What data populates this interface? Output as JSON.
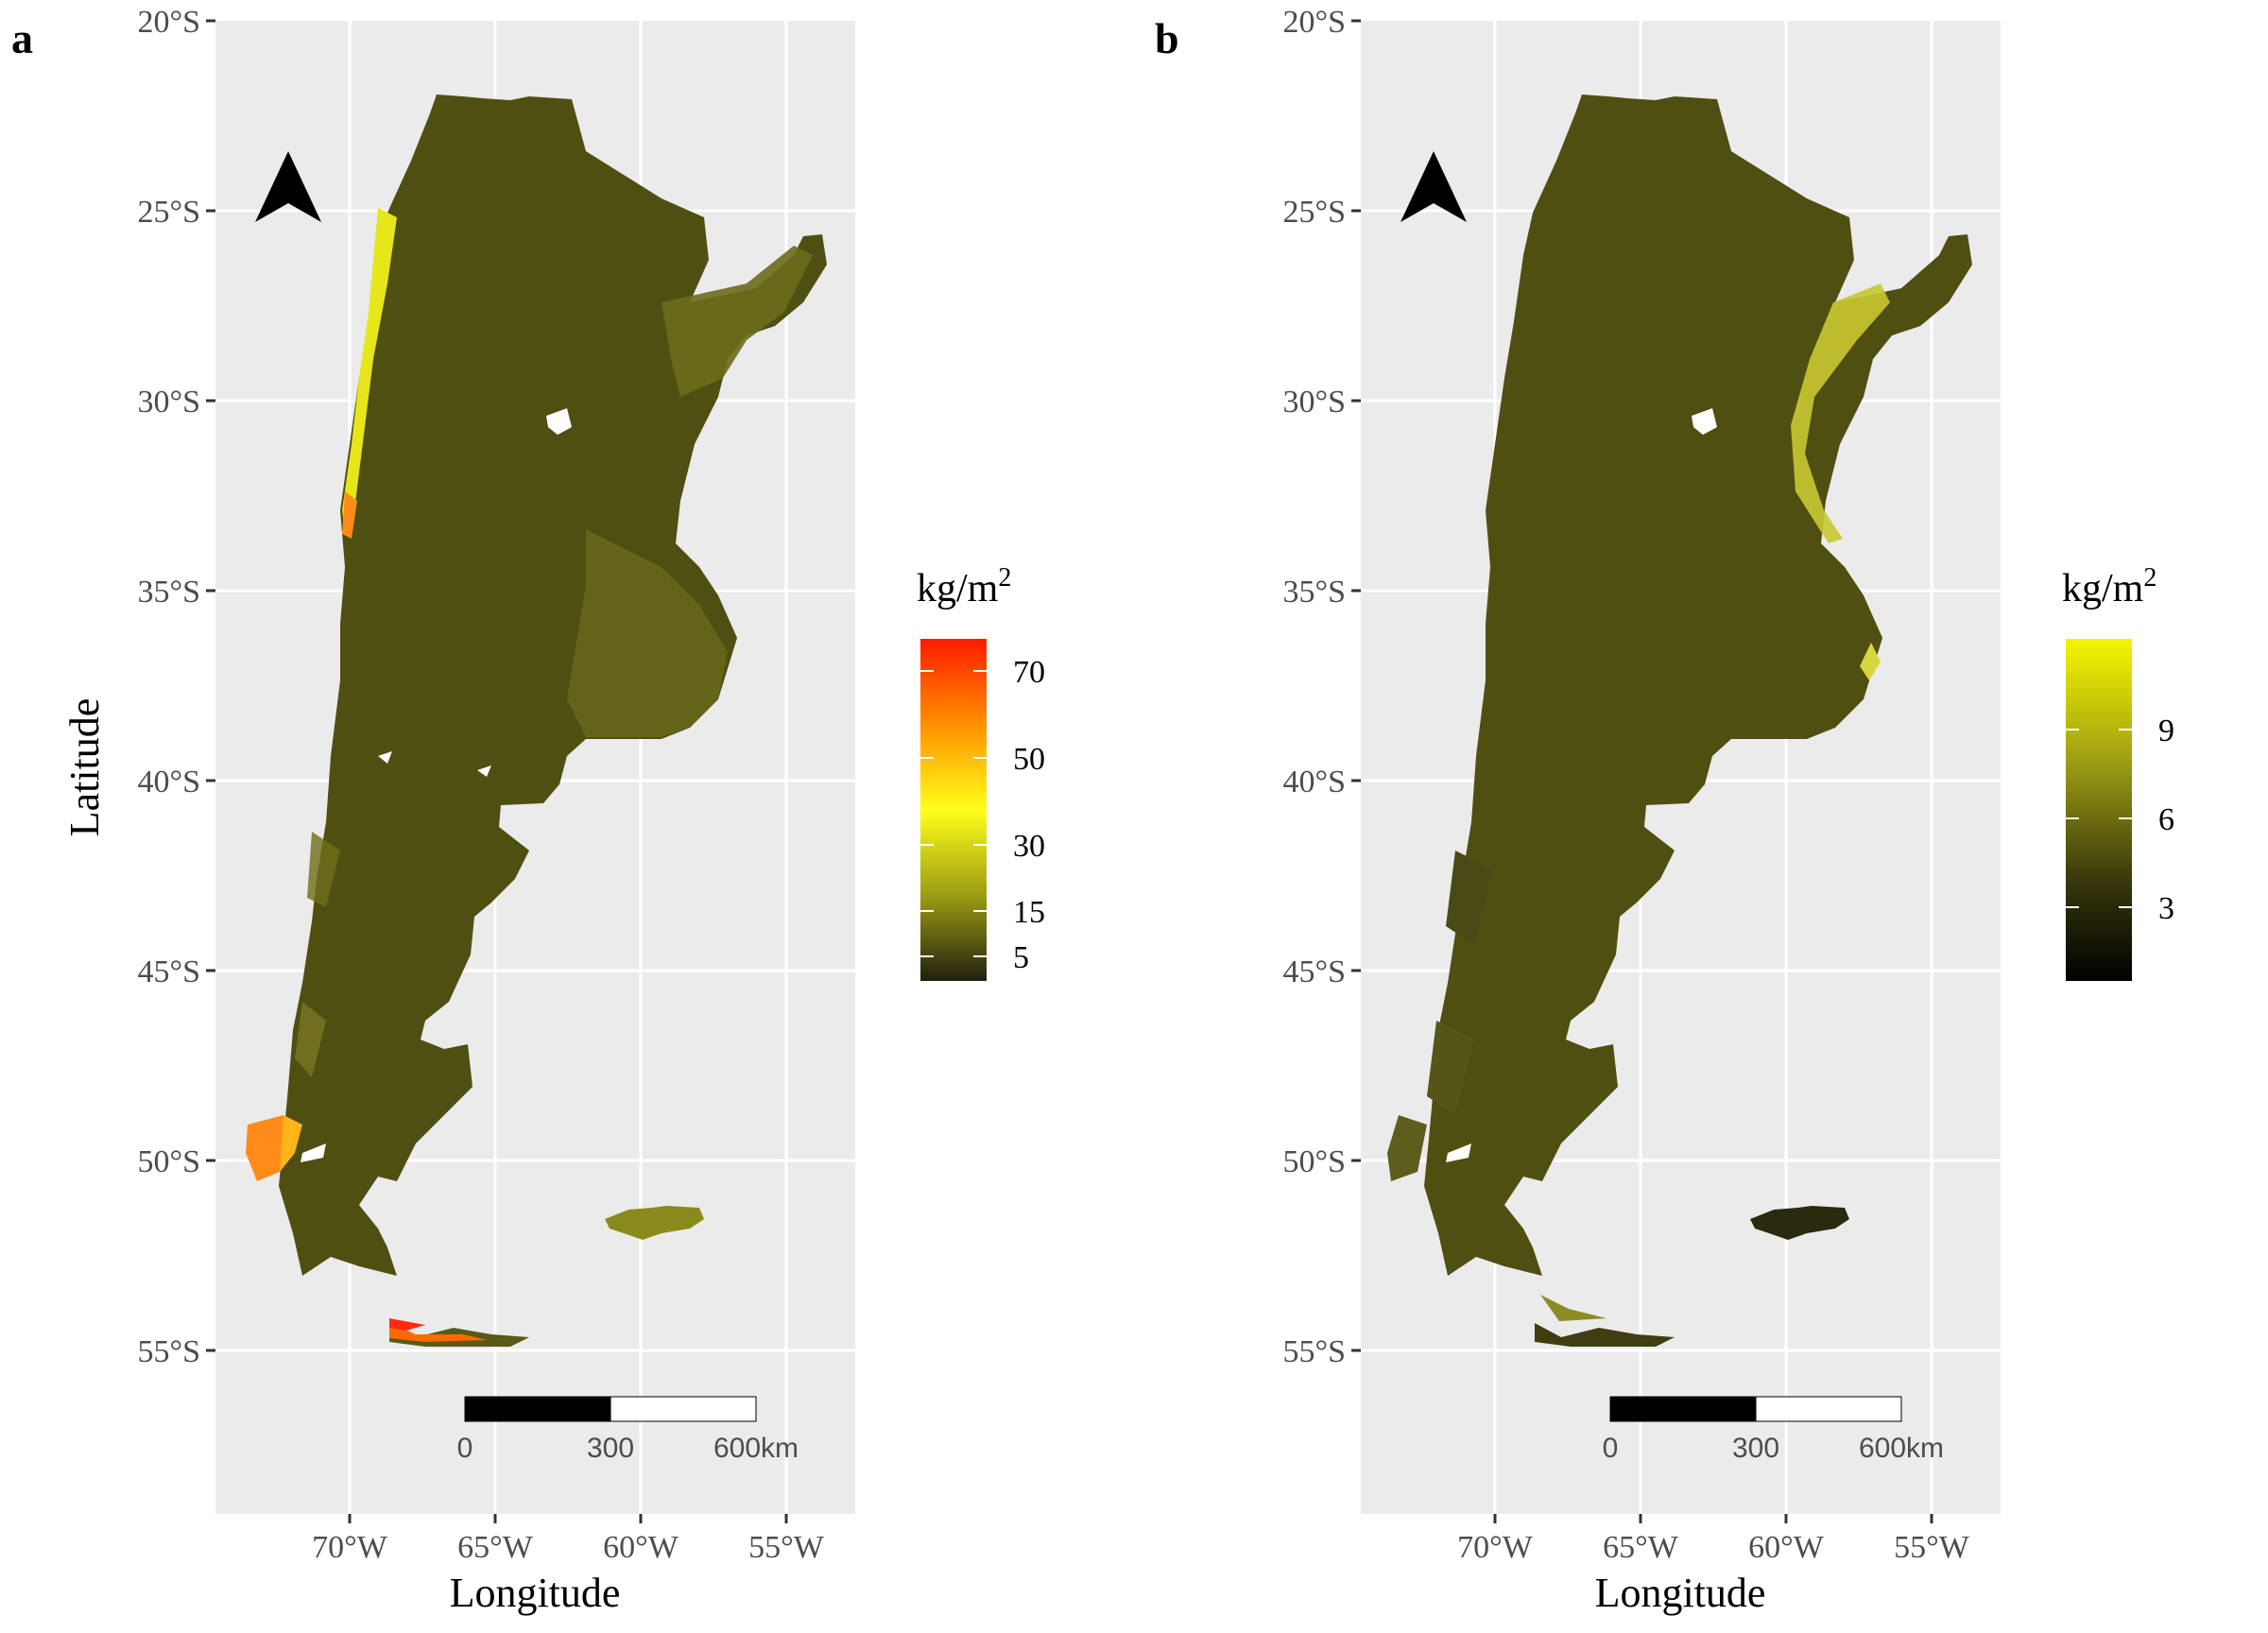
{
  "panels": [
    {
      "tag": "a",
      "x_label": "Longitude",
      "y_label": "Latitude",
      "lat_ticks": [
        "20°S",
        "25°S",
        "30°S",
        "35°S",
        "40°S",
        "45°S",
        "50°S",
        "55°S"
      ],
      "lon_ticks": [
        "70°W",
        "65°W",
        "60°W",
        "55°W"
      ],
      "legend": {
        "title_base": "kg/m",
        "title_sup": "2",
        "ticks": [
          "70",
          "50",
          "30",
          "15",
          "5"
        ],
        "colors": [
          "#ff1a00",
          "#ff8c00",
          "#ffff1a",
          "#aaaa14",
          "#222210"
        ]
      },
      "scale_bar": {
        "labels": [
          "0",
          "300",
          "600km"
        ]
      },
      "map_colors": {
        "base": "#4f4f12",
        "light": "#7a7a1e",
        "hot": "#ffe21a"
      }
    },
    {
      "tag": "b",
      "x_label": "Longitude",
      "y_label": "",
      "lat_ticks": [
        "20°S",
        "25°S",
        "30°S",
        "35°S",
        "40°S",
        "45°S",
        "50°S",
        "55°S"
      ],
      "lon_ticks": [
        "70°W",
        "65°W",
        "60°W",
        "55°W"
      ],
      "legend": {
        "title_base": "kg/m",
        "title_sup": "2",
        "ticks": [
          "9",
          "6",
          "3"
        ],
        "colors": [
          "#f2f200",
          "#8a8a10",
          "#2a2a08",
          "#000000"
        ]
      },
      "scale_bar": {
        "labels": [
          "0",
          "300",
          "600km"
        ]
      },
      "map_colors": {
        "base": "#2c2c0c",
        "light": "#55551a",
        "hot": "#dede30"
      }
    }
  ]
}
